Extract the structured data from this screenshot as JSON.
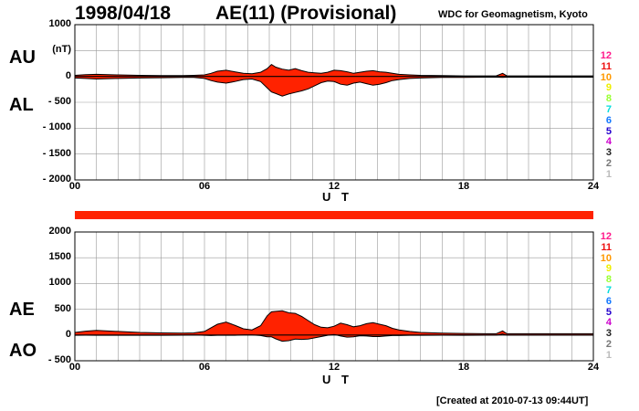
{
  "header": {
    "date": "1998/04/18",
    "title": "AE(11) (Provisional)",
    "source": "WDC for Geomagnetism, Kyoto"
  },
  "footer": {
    "created": "[Created at 2010-07-13 09:44UT]"
  },
  "legend": [
    {
      "label": "12",
      "color": "#ff1a8c"
    },
    {
      "label": "11",
      "color": "#ee1111"
    },
    {
      "label": "10",
      "color": "#ff9900"
    },
    {
      "label": "9",
      "color": "#eeee00"
    },
    {
      "label": "8",
      "color": "#99ff33"
    },
    {
      "label": "7",
      "color": "#00dddd"
    },
    {
      "label": "6",
      "color": "#1177ff"
    },
    {
      "label": "5",
      "color": "#2200cc"
    },
    {
      "label": "4",
      "color": "#cc00cc"
    },
    {
      "label": "3",
      "color": "#222222"
    },
    {
      "label": "2",
      "color": "#777777"
    },
    {
      "label": "1",
      "color": "#bbbbbb"
    }
  ],
  "colors": {
    "fill": "#ff2200",
    "line": "#000000",
    "grid": "#999999",
    "bar": "#ff2200"
  },
  "chart_data": [
    {
      "type": "area",
      "title": "",
      "upper_label": "AU",
      "lower_label": "AL",
      "unit": "(nT)",
      "xlabel": "U T",
      "xlim": [
        0,
        24
      ],
      "ylim": [
        -2000,
        1000
      ],
      "yticks": [
        1000,
        500,
        0,
        -500,
        -1000,
        -1500,
        -2000
      ],
      "ytick_labels": [
        "1000",
        "(nT)",
        "0",
        "- 500",
        "- 1000",
        "- 1500",
        "- 2000"
      ],
      "xticks": [
        0,
        6,
        12,
        18,
        24
      ],
      "xtick_labels": [
        "00",
        "06",
        "12",
        "18",
        "24"
      ],
      "grid": true,
      "series": [
        {
          "name": "AU",
          "x": [
            0,
            0.5,
            1,
            2,
            3,
            4,
            5,
            5.5,
            6,
            6.3,
            6.6,
            7,
            7.4,
            7.8,
            8.2,
            8.6,
            8.9,
            9.1,
            9.3,
            9.6,
            9.9,
            10.2,
            10.5,
            10.8,
            11.1,
            11.4,
            11.7,
            12,
            12.3,
            12.6,
            12.9,
            13.2,
            13.5,
            13.8,
            14.1,
            14.4,
            14.7,
            15,
            15.5,
            16,
            17,
            18,
            19,
            19.5,
            19.8,
            20,
            21,
            22,
            23,
            24
          ],
          "y": [
            20,
            35,
            40,
            30,
            20,
            15,
            15,
            20,
            30,
            60,
            100,
            120,
            90,
            60,
            50,
            80,
            150,
            230,
            180,
            140,
            120,
            150,
            110,
            80,
            70,
            60,
            80,
            120,
            110,
            90,
            60,
            80,
            100,
            110,
            90,
            80,
            60,
            40,
            30,
            20,
            15,
            10,
            10,
            10,
            60,
            10,
            10,
            10,
            10,
            10
          ]
        },
        {
          "name": "AL",
          "x": [
            0,
            0.5,
            1,
            2,
            3,
            4,
            5,
            5.5,
            6,
            6.3,
            6.6,
            7,
            7.4,
            7.8,
            8.2,
            8.6,
            8.9,
            9.1,
            9.3,
            9.6,
            9.9,
            10.2,
            10.5,
            10.8,
            11.1,
            11.4,
            11.7,
            12,
            12.3,
            12.6,
            12.9,
            13.2,
            13.5,
            13.8,
            14.1,
            14.4,
            14.7,
            15,
            15.5,
            16,
            17,
            18,
            19,
            19.5,
            19.8,
            20,
            21,
            22,
            23,
            24
          ],
          "y": [
            -30,
            -40,
            -50,
            -40,
            -30,
            -25,
            -20,
            -20,
            -40,
            -80,
            -110,
            -130,
            -100,
            -60,
            -50,
            -100,
            -220,
            -300,
            -330,
            -380,
            -340,
            -310,
            -280,
            -240,
            -180,
            -120,
            -90,
            -100,
            -150,
            -170,
            -130,
            -110,
            -140,
            -170,
            -150,
            -120,
            -80,
            -60,
            -40,
            -30,
            -20,
            -20,
            -15,
            -15,
            -20,
            -15,
            -15,
            -15,
            -15,
            -15
          ]
        }
      ]
    },
    {
      "type": "area",
      "title": "",
      "upper_label": "AE",
      "lower_label": "AO",
      "unit": "(nT)",
      "xlabel": "U T",
      "xlim": [
        0,
        24
      ],
      "ylim": [
        -500,
        2000
      ],
      "yticks": [
        2000,
        1500,
        1000,
        500,
        0,
        -500
      ],
      "ytick_labels": [
        "2000",
        "1500",
        "1000",
        "500",
        "0",
        "- 500"
      ],
      "xticks": [
        0,
        6,
        12,
        18,
        24
      ],
      "xtick_labels": [
        "00",
        "06",
        "12",
        "18",
        "24"
      ],
      "grid": true,
      "series": [
        {
          "name": "AE",
          "x": [
            0,
            0.5,
            1,
            2,
            3,
            4,
            5,
            5.5,
            6,
            6.3,
            6.6,
            7,
            7.4,
            7.8,
            8.2,
            8.6,
            8.9,
            9.1,
            9.3,
            9.6,
            9.9,
            10.2,
            10.5,
            10.8,
            11.1,
            11.4,
            11.7,
            12,
            12.3,
            12.6,
            12.9,
            13.2,
            13.5,
            13.8,
            14.1,
            14.4,
            14.7,
            15,
            15.5,
            16,
            17,
            18,
            19,
            19.5,
            19.8,
            20,
            21,
            22,
            23,
            24
          ],
          "y": [
            50,
            75,
            90,
            70,
            50,
            40,
            35,
            40,
            70,
            140,
            210,
            250,
            190,
            120,
            100,
            180,
            370,
            450,
            460,
            470,
            430,
            420,
            360,
            280,
            200,
            150,
            140,
            170,
            230,
            200,
            160,
            180,
            220,
            240,
            210,
            180,
            130,
            100,
            70,
            50,
            35,
            30,
            25,
            25,
            80,
            25,
            25,
            25,
            25,
            25
          ]
        },
        {
          "name": "AO",
          "x": [
            0,
            0.5,
            1,
            2,
            3,
            4,
            5,
            5.5,
            6,
            6.3,
            6.6,
            7,
            7.4,
            7.8,
            8.2,
            8.6,
            8.9,
            9.1,
            9.3,
            9.6,
            9.9,
            10.2,
            10.5,
            10.8,
            11.1,
            11.4,
            11.7,
            12,
            12.3,
            12.6,
            12.9,
            13.2,
            13.5,
            13.8,
            14.1,
            14.4,
            14.7,
            15,
            15.5,
            16,
            17,
            18,
            19,
            19.5,
            19.8,
            20,
            21,
            22,
            23,
            24
          ],
          "y": [
            -5,
            -3,
            -5,
            -5,
            -5,
            -5,
            -3,
            0,
            -5,
            -10,
            -5,
            -5,
            -5,
            0,
            0,
            -10,
            -35,
            -35,
            -75,
            -120,
            -110,
            -80,
            -85,
            -80,
            -55,
            -30,
            -5,
            10,
            -20,
            -40,
            -35,
            -15,
            -20,
            -30,
            -30,
            -20,
            -10,
            -10,
            -5,
            -5,
            -3,
            -5,
            -3,
            -3,
            20,
            -3,
            -3,
            -3,
            -3,
            -3
          ]
        }
      ]
    }
  ]
}
